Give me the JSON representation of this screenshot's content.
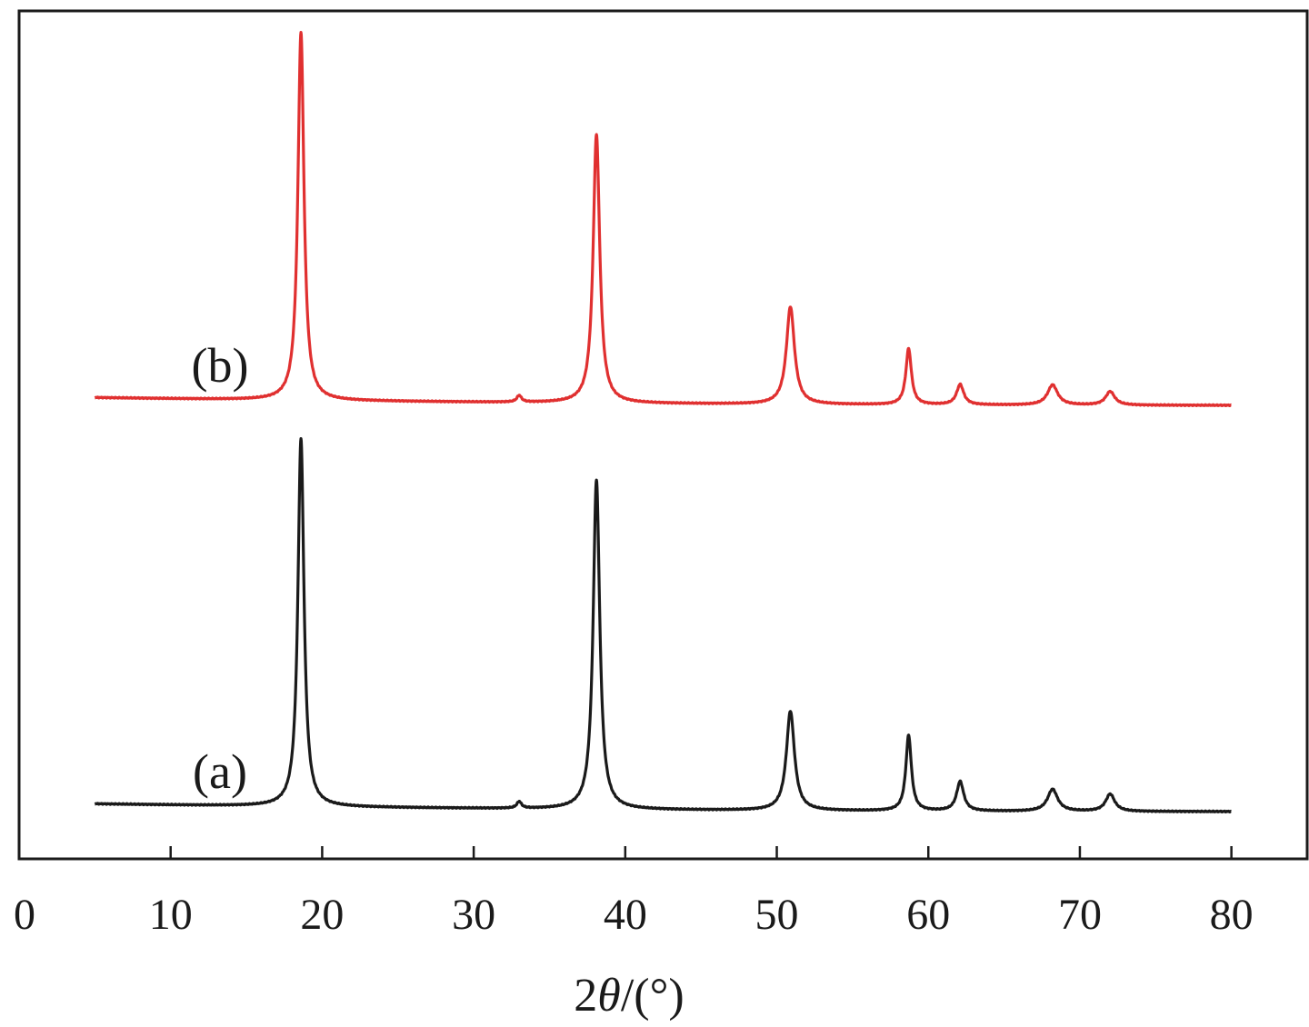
{
  "chart_data": {
    "type": "line",
    "title": "",
    "xlabel_prefix": "2",
    "xlabel_symbol": "θ",
    "xlabel_suffix": "/(°)",
    "ylabel": "",
    "xlim": [
      0,
      85
    ],
    "xticks": [
      0,
      10,
      20,
      30,
      40,
      50,
      60,
      70,
      80
    ],
    "xtick_labels": [
      "0",
      "10",
      "20",
      "30",
      "40",
      "50",
      "60",
      "70",
      "80"
    ],
    "yticks_shown": false,
    "grid": false,
    "legend": "none",
    "peaks_2theta": [
      18.6,
      33.0,
      38.1,
      50.9,
      58.7,
      62.1,
      68.2,
      72.0
    ],
    "series": [
      {
        "name": "(a)",
        "color": "#1a1a1a",
        "x_range": [
          5,
          80
        ],
        "baseline_relative_intensity": {
          "start": 2.6,
          "end": 0.5
        },
        "peak_relative_intensity": [
          100,
          1.8,
          89.5,
          27.0,
          20.5,
          8.0,
          6.0,
          4.7
        ],
        "vertical_offset_step": 0
      },
      {
        "name": "(b)",
        "color": "#e03030",
        "x_range": [
          5,
          80
        ],
        "baseline_relative_intensity": {
          "start": 2.6,
          "end": 0.5
        },
        "peak_relative_intensity": [
          100,
          1.8,
          73.0,
          26.5,
          15.2,
          5.5,
          5.5,
          3.7
        ],
        "vertical_offset_step": 1
      }
    ]
  }
}
